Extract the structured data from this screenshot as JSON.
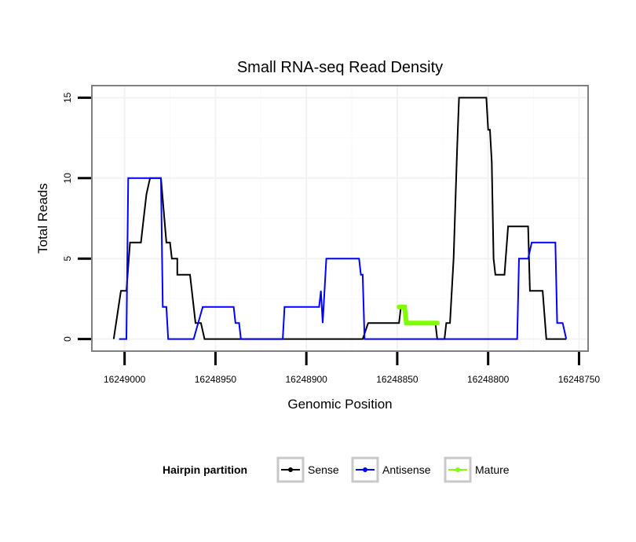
{
  "chart_data": {
    "type": "line",
    "title": "Small RNA-seq Read Density",
    "xlabel": "Genomic Position",
    "ylabel": "Total Reads",
    "x_reversed": true,
    "xlim": [
      16249018,
      16248745
    ],
    "ylim": [
      -0.75,
      15.75
    ],
    "x_ticks": [
      16249000,
      16248950,
      16248900,
      16248850,
      16248800,
      16248750
    ],
    "x_tick_labels": [
      "16249000",
      "16248950",
      "16248900",
      "16248850",
      "16248800",
      "16248750"
    ],
    "y_ticks": [
      0,
      5,
      10,
      15
    ],
    "y_tick_labels": [
      "0",
      "5",
      "10",
      "15"
    ],
    "grid": true,
    "legend": {
      "title": "Hairpin partition",
      "position": "bottom",
      "entries": [
        "Sense",
        "Antisense",
        "Mature"
      ]
    },
    "series": [
      {
        "name": "Sense",
        "color": "#000000",
        "x": [
          16249006,
          16249002,
          16248999,
          16248997,
          16248991,
          16248990,
          16248988,
          16248986,
          16248980,
          16248977,
          16248975,
          16248974,
          16248971,
          16248971,
          16248964,
          16248961,
          16248958,
          16248956,
          16248869,
          16248866,
          16248849,
          16248848,
          16248846,
          16248845,
          16248829,
          16248828,
          16248824,
          16248823,
          16248821,
          16248819,
          16248817,
          16248816,
          16248801,
          16248800,
          16248799,
          16248798,
          16248797,
          16248796,
          16248791,
          16248789,
          16248778,
          16248777,
          16248770,
          16248768,
          16248757
        ],
        "y": [
          0,
          3,
          3,
          6,
          6,
          7,
          9,
          10,
          10,
          6,
          6,
          5,
          5,
          4,
          4,
          1,
          1,
          0,
          0,
          1,
          1,
          2,
          2,
          1,
          1,
          0,
          0,
          1,
          1,
          5,
          12,
          15,
          15,
          13,
          13,
          11,
          5,
          4,
          4,
          7,
          7,
          3,
          3,
          0,
          0
        ]
      },
      {
        "name": "Antisense",
        "color": "#0000ff",
        "x": [
          16249003,
          16248999,
          16248998,
          16248980,
          16248979,
          16248977,
          16248976,
          16248962,
          16248957,
          16248940,
          16248939,
          16248937,
          16248936,
          16248913,
          16248912,
          16248893,
          16248892,
          16248891,
          16248889,
          16248871,
          16248870,
          16248869,
          16248868,
          16248784,
          16248783,
          16248778,
          16248776,
          16248763,
          16248762,
          16248759,
          16248757
        ],
        "y": [
          0,
          0,
          10,
          10,
          2,
          2,
          0,
          0,
          2,
          2,
          1,
          1,
          0,
          0,
          2,
          2,
          3,
          1,
          5,
          5,
          4,
          4,
          0,
          0,
          5,
          5,
          6,
          6,
          1,
          1,
          0
        ]
      },
      {
        "name": "Mature",
        "color": "#7fff00",
        "x": [
          16248849,
          16248846,
          16248845,
          16248828
        ],
        "y": [
          2,
          2,
          1,
          1
        ]
      }
    ]
  }
}
